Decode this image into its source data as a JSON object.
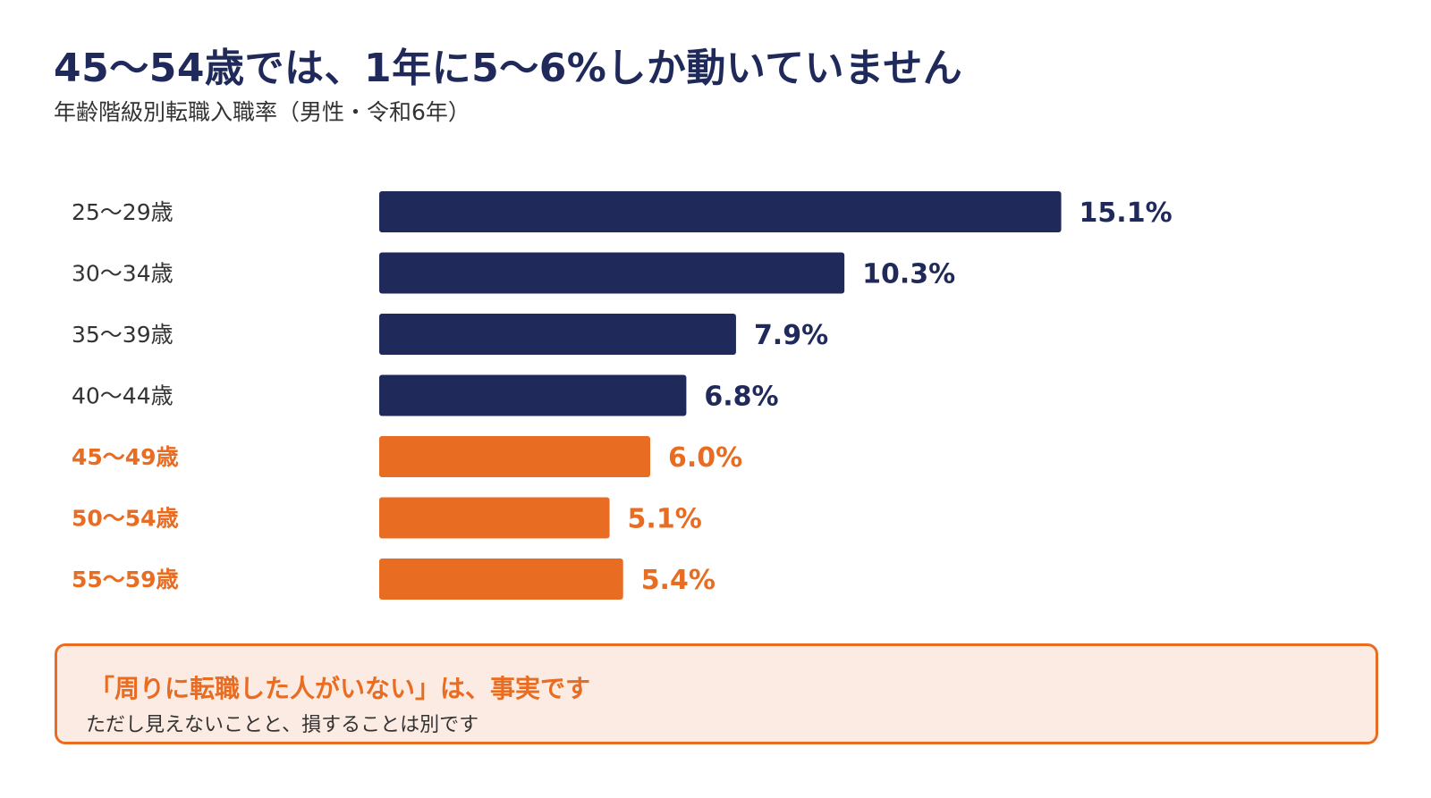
{
  "header": {
    "title": "45〜54歳では、1年に5〜6%しか動いていません",
    "subtitle": "年齢階級別転職入職率（男性・令和6年）"
  },
  "colors": {
    "navy": "#1f2a5a",
    "orange": "#e86c22",
    "label_default": "#333333",
    "callout_bg": "#fcebe3"
  },
  "chart_data": {
    "type": "bar",
    "orientation": "horizontal",
    "categories": [
      "25〜29歳",
      "30〜34歳",
      "35〜39歳",
      "40〜44歳",
      "45〜49歳",
      "50〜54歳",
      "55〜59歳"
    ],
    "values": [
      15.1,
      10.3,
      7.9,
      6.8,
      6.0,
      5.1,
      5.4
    ],
    "value_labels": [
      "15.1%",
      "10.3%",
      "7.9%",
      "6.8%",
      "6.0%",
      "5.1%",
      "5.4%"
    ],
    "highlighted": [
      false,
      false,
      false,
      false,
      true,
      true,
      true
    ],
    "unit": "%",
    "title": "",
    "xlabel": "",
    "ylabel": "",
    "grid": false,
    "legend": "none"
  },
  "callout": {
    "headline": "「周りに転職した人がいない」は、事実です",
    "subtext": "ただし見えないことと、損することは別です"
  }
}
